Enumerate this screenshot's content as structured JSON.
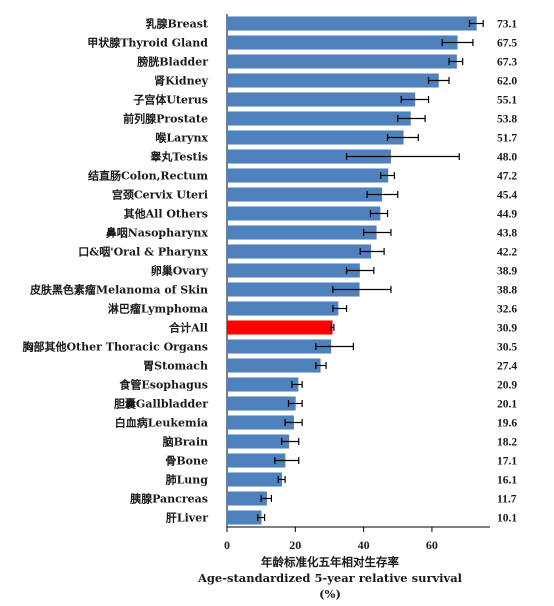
{
  "chart_data": {
    "type": "bar",
    "orientation": "horizontal",
    "categories": [
      "乳腺Breast",
      "甲状腺Thyroid Gland",
      "膀胱Bladder",
      "肾Kidney",
      "子宫体Uterus",
      "前列腺Prostate",
      "喉Larynx",
      "睾丸Testis",
      "结直肠Colon,Rectum",
      "宫颈Cervix Uteri",
      "其他All Others",
      "鼻咽Nasopharynx",
      "口&咽'Oral & Pharynx",
      "卵巢Ovary",
      "皮肤黑色素瘤Melanoma of Skin",
      "淋巴瘤Lymphoma",
      "合计All",
      "胸部其他Other Thoracic Organs",
      "胃Stomach",
      "食管Esophagus",
      "胆囊Gallbladder",
      "白血病Leukemia",
      "脑Brain",
      "骨Bone",
      "肺Lung",
      "胰腺Pancreas",
      "肝Liver"
    ],
    "values": [
      73.1,
      67.5,
      67.3,
      62.0,
      55.1,
      53.8,
      51.7,
      48.0,
      47.2,
      45.4,
      44.9,
      43.8,
      42.2,
      38.9,
      38.8,
      32.6,
      30.9,
      30.5,
      27.4,
      20.9,
      20.1,
      19.6,
      18.2,
      17.1,
      16.1,
      11.7,
      10.1
    ],
    "value_labels": [
      "73.1",
      "67.5",
      "67.3",
      "62.0",
      "55.1",
      "53.8",
      "51.7",
      "48.0",
      "47.2",
      "45.4",
      "44.9",
      "43.8",
      "42.2",
      "38.9",
      "38.8",
      "32.6",
      "30.9",
      "30.5",
      "27.4",
      "20.9",
      "20.1",
      "19.6",
      "18.2",
      "17.1",
      "16.1",
      "11.7",
      "10.1"
    ],
    "error_low": [
      71,
      63,
      65,
      59,
      51,
      50,
      47,
      35,
      45,
      41,
      42,
      40,
      39,
      35,
      31,
      31,
      30.5,
      26,
      26,
      19,
      18,
      17,
      16,
      14,
      15,
      10,
      9
    ],
    "error_high": [
      75,
      72,
      69,
      65,
      59,
      58,
      56,
      68,
      49,
      50,
      47,
      48,
      46,
      43,
      48,
      35,
      31.3,
      37,
      29,
      22,
      22,
      22,
      21,
      21,
      17,
      13,
      11
    ],
    "highlight_category": "合计All",
    "colors": {
      "bar": "#4f81bd",
      "highlight": "#ff0000",
      "error": "#000000",
      "axis": "#000000"
    },
    "xlim": [
      0,
      77
    ],
    "xticks": [
      0,
      20,
      40,
      60
    ],
    "xlabel_lines": [
      "年龄标准化五年相对生存率",
      "Age-standardized 5-year relative survival",
      "(%)"
    ],
    "grid": false,
    "legend": "none"
  }
}
